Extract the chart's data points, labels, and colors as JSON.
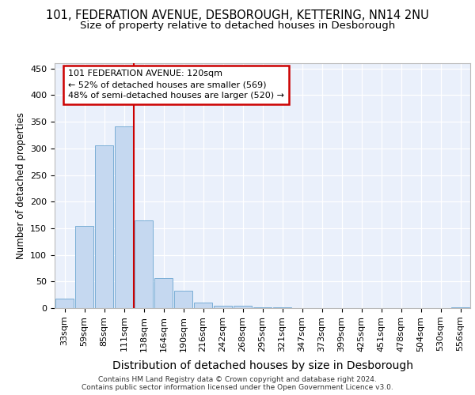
{
  "title": "101, FEDERATION AVENUE, DESBOROUGH, KETTERING, NN14 2NU",
  "subtitle": "Size of property relative to detached houses in Desborough",
  "xlabel": "Distribution of detached houses by size in Desborough",
  "ylabel": "Number of detached properties",
  "categories": [
    "33sqm",
    "59sqm",
    "85sqm",
    "111sqm",
    "138sqm",
    "164sqm",
    "190sqm",
    "216sqm",
    "242sqm",
    "268sqm",
    "295sqm",
    "321sqm",
    "347sqm",
    "373sqm",
    "399sqm",
    "425sqm",
    "451sqm",
    "478sqm",
    "504sqm",
    "530sqm",
    "556sqm"
  ],
  "values": [
    18,
    154,
    305,
    342,
    165,
    57,
    33,
    10,
    5,
    4,
    2,
    1,
    0,
    0,
    0,
    0,
    0,
    0,
    0,
    0,
    2
  ],
  "bar_color": "#c5d8f0",
  "bar_edge_color": "#7aaed6",
  "vline_x": 3.5,
  "vline_color": "#cc0000",
  "annotation_line1": "101 FEDERATION AVENUE: 120sqm",
  "annotation_line2": "← 52% of detached houses are smaller (569)",
  "annotation_line3": "48% of semi-detached houses are larger (520) →",
  "annotation_box_color": "#ffffff",
  "annotation_box_edge": "#cc0000",
  "ylim": [
    0,
    460
  ],
  "yticks": [
    0,
    50,
    100,
    150,
    200,
    250,
    300,
    350,
    400,
    450
  ],
  "plot_bg_color": "#eaf0fb",
  "footer_line1": "Contains HM Land Registry data © Crown copyright and database right 2024.",
  "footer_line2": "Contains public sector information licensed under the Open Government Licence v3.0.",
  "title_fontsize": 10.5,
  "subtitle_fontsize": 9.5,
  "xlabel_fontsize": 10,
  "ylabel_fontsize": 8.5,
  "tick_fontsize": 8,
  "footer_fontsize": 6.5
}
